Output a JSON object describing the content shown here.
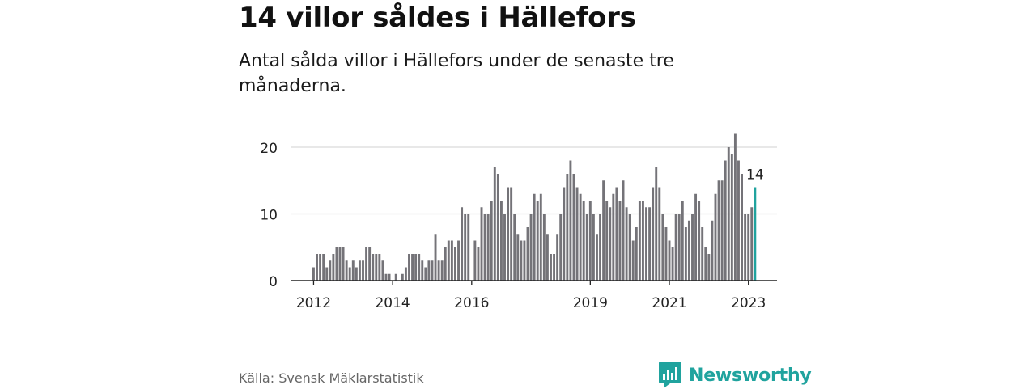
{
  "title": "14 villor såldes i Hällefors",
  "subtitle": "Antal sålda villor i Hällefors under de senaste tre månaderna.",
  "source": "Källa: Svensk Mäklarstatistik",
  "brand": "Newsworthy",
  "chart_data": {
    "type": "bar",
    "title": "14 villor såldes i Hällefors",
    "subtitle": "Antal sålda villor i Hällefors under de senaste tre månaderna.",
    "xlabel": "",
    "ylabel": "",
    "ylim": [
      0,
      20
    ],
    "yticks": [
      0,
      10,
      20
    ],
    "grid": true,
    "legend": "none",
    "x_start": "2012-01",
    "x_end": "2023-03",
    "x_tick_labels": [
      "2012",
      "2014",
      "2016",
      "2019",
      "2021",
      "2023"
    ],
    "x_tick_dates": [
      "2012-01",
      "2014-01",
      "2016-01",
      "2019-01",
      "2021-01",
      "2023-01"
    ],
    "values": [
      2,
      4,
      4,
      4,
      2,
      3,
      4,
      5,
      5,
      5,
      3,
      2,
      3,
      2,
      3,
      3,
      5,
      5,
      4,
      4,
      4,
      3,
      1,
      1,
      0,
      1,
      0,
      1,
      2,
      4,
      4,
      4,
      4,
      3,
      2,
      3,
      3,
      7,
      3,
      3,
      5,
      6,
      6,
      5,
      6,
      11,
      10,
      10,
      0,
      6,
      5,
      11,
      10,
      10,
      12,
      17,
      16,
      12,
      10,
      14,
      14,
      10,
      7,
      6,
      6,
      8,
      10,
      13,
      12,
      13,
      10,
      7,
      4,
      4,
      7,
      10,
      14,
      16,
      18,
      16,
      14,
      13,
      12,
      10,
      12,
      10,
      7,
      10,
      15,
      12,
      11,
      13,
      14,
      12,
      15,
      11,
      10,
      6,
      8,
      12,
      12,
      11,
      11,
      14,
      17,
      14,
      10,
      8,
      6,
      5,
      10,
      10,
      12,
      8,
      9,
      10,
      13,
      12,
      8,
      5,
      4,
      9,
      13,
      15,
      15,
      18,
      20,
      19,
      22,
      18,
      16,
      10,
      10,
      11,
      14
    ],
    "highlight": {
      "index": 134,
      "label": "14"
    },
    "colors": {
      "bar": "#747378",
      "highlight": "#20a39e",
      "grid": "#d9d9d9",
      "axis": "#222222"
    }
  }
}
